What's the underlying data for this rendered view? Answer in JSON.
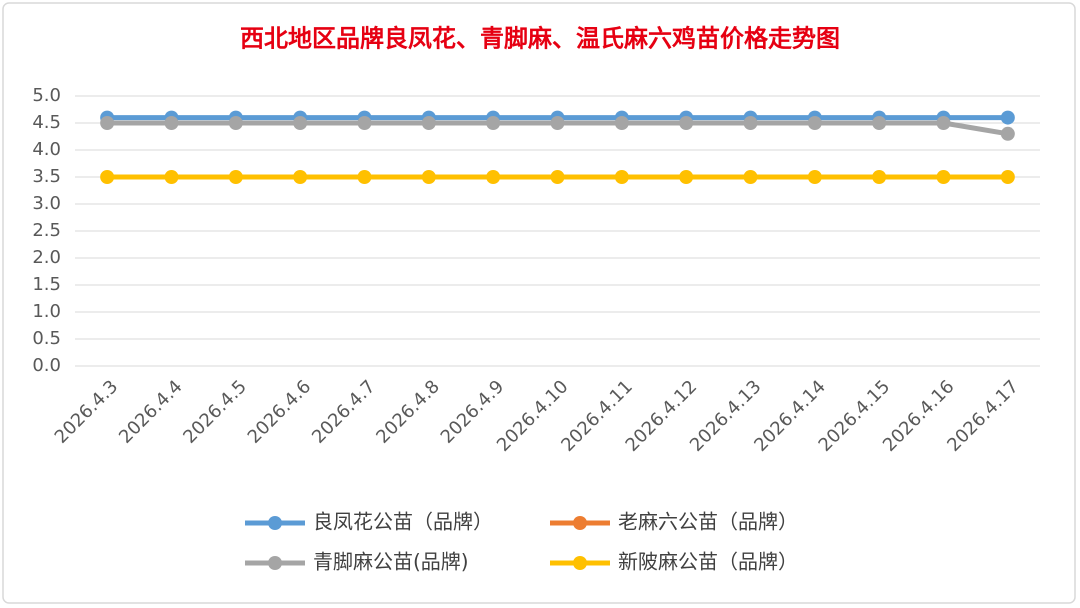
{
  "chart_data": {
    "type": "line",
    "title": "西北地区品牌良凤花、青脚麻、温氏麻六鸡苗价格走势图",
    "categories": [
      "2026.4.3",
      "2026.4.4",
      "2026.4.5",
      "2026.4.6",
      "2026.4.7",
      "2026.4.8",
      "2026.4.9",
      "2026.4.10",
      "2026.4.11",
      "2026.4.12",
      "2026.4.13",
      "2026.4.14",
      "2026.4.15",
      "2026.4.16",
      "2026.4.17"
    ],
    "series": [
      {
        "name": "良凤花公苗（品牌）",
        "color": "#5b9bd5",
        "values": [
          4.6,
          4.6,
          4.6,
          4.6,
          4.6,
          4.6,
          4.6,
          4.6,
          4.6,
          4.6,
          4.6,
          4.6,
          4.6,
          4.6,
          4.6
        ]
      },
      {
        "name": "老麻六公苗（品牌）",
        "color": "#ed7d31",
        "values": [
          null,
          null,
          null,
          null,
          null,
          null,
          null,
          null,
          null,
          null,
          null,
          null,
          null,
          null,
          null
        ]
      },
      {
        "name": "青脚麻公苗(品牌)",
        "color": "#a5a5a5",
        "values": [
          4.5,
          4.5,
          4.5,
          4.5,
          4.5,
          4.5,
          4.5,
          4.5,
          4.5,
          4.5,
          4.5,
          4.5,
          4.5,
          4.5,
          4.3
        ]
      },
      {
        "name": "新陂麻公苗（品牌）",
        "color": "#ffc000",
        "values": [
          3.5,
          3.5,
          3.5,
          3.5,
          3.5,
          3.5,
          3.5,
          3.5,
          3.5,
          3.5,
          3.5,
          3.5,
          3.5,
          3.5,
          3.5
        ]
      }
    ],
    "ylim": [
      0,
      5
    ],
    "yticks": [
      {
        "value": 0,
        "label": "0.0"
      },
      {
        "value": 0.5,
        "label": "0.5"
      },
      {
        "value": 1,
        "label": "1.0"
      },
      {
        "value": 1.5,
        "label": "1.5"
      },
      {
        "value": 2,
        "label": "2.0"
      },
      {
        "value": 2.5,
        "label": "2.5"
      },
      {
        "value": 3,
        "label": "3.0"
      },
      {
        "value": 3.5,
        "label": "3.5"
      },
      {
        "value": 4,
        "label": "4.0"
      },
      {
        "value": 4.5,
        "label": "4.5"
      },
      {
        "value": 5,
        "label": "5.0"
      }
    ],
    "grid": true,
    "legend": "bottom"
  }
}
